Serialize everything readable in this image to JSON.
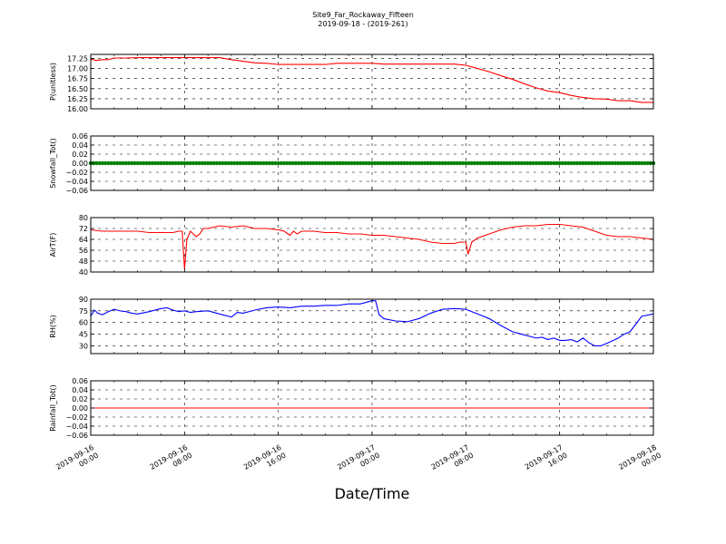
{
  "figure": {
    "title": "Site9_Far_Rockaway_Fifteen",
    "subtitle": "2019-09-18 - (2019-261)",
    "xlabel": "Date/Time"
  },
  "chart_data": [
    {
      "type": "line",
      "ylabel": "P(unitless)",
      "color": "#ff0000",
      "ylim": [
        16.0,
        17.35
      ],
      "yticks": [
        16.0,
        16.25,
        16.5,
        16.75,
        17.0,
        17.25
      ],
      "ytick_labels": [
        "16.00",
        "16.25",
        "16.50",
        "16.75",
        "17.00",
        "17.25"
      ],
      "xlim": [
        0,
        48
      ],
      "xticks": [
        0,
        8,
        16,
        24,
        32,
        40,
        48
      ],
      "xtick_labels": [
        [
          "2019-09-16",
          "00:00"
        ],
        [
          "2019-09-16",
          "08:00"
        ],
        [
          "2019-09-16",
          "16:00"
        ],
        [
          "2019-09-17",
          "00:00"
        ],
        [
          "2019-09-17",
          "08:00"
        ],
        [
          "2019-09-17",
          "16:00"
        ],
        [
          "2019-09-18",
          "00:00"
        ]
      ],
      "grid": true,
      "series": [
        {
          "x": [
            0,
            0.5,
            1,
            1.5,
            2,
            3,
            4,
            5,
            6,
            7,
            8,
            9,
            10,
            11,
            12,
            13,
            14,
            15,
            16,
            17,
            18,
            19,
            20,
            21,
            22,
            23,
            24,
            25,
            26,
            27,
            28,
            29,
            30,
            31,
            32,
            33,
            34,
            35,
            36,
            37,
            38,
            39,
            40,
            41,
            42,
            43,
            44,
            45,
            46,
            47,
            48
          ],
          "y": [
            17.23,
            17.2,
            17.22,
            17.22,
            17.26,
            17.26,
            17.27,
            17.27,
            17.27,
            17.27,
            17.27,
            17.27,
            17.27,
            17.27,
            17.22,
            17.18,
            17.14,
            17.13,
            17.1,
            17.1,
            17.1,
            17.1,
            17.1,
            17.13,
            17.13,
            17.13,
            17.13,
            17.11,
            17.11,
            17.11,
            17.11,
            17.11,
            17.11,
            17.11,
            17.08,
            17.0,
            16.92,
            16.82,
            16.73,
            16.62,
            16.52,
            16.44,
            16.4,
            16.33,
            16.28,
            16.25,
            16.24,
            16.2,
            16.2,
            16.16,
            16.16
          ]
        }
      ]
    },
    {
      "type": "scatter",
      "ylabel": "Snowfall_Tot()",
      "color": "#008000",
      "ylim": [
        -0.06,
        0.06
      ],
      "yticks": [
        -0.06,
        -0.04,
        -0.02,
        0.0,
        0.02,
        0.04,
        0.06
      ],
      "ytick_labels": [
        "−0.06",
        "−0.04",
        "−0.02",
        "0.00",
        "0.02",
        "0.04",
        "0.06"
      ],
      "xlim": [
        0,
        48
      ],
      "grid": true,
      "series": [
        {
          "x_range": [
            0,
            48
          ],
          "x_step": 0.25,
          "y_value": 0.0
        }
      ]
    },
    {
      "type": "line",
      "ylabel": "AirT(F)",
      "color": "#ff0000",
      "ylim": [
        40,
        80
      ],
      "yticks": [
        40,
        48,
        56,
        64,
        72,
        80
      ],
      "ytick_labels": [
        "40",
        "48",
        "56",
        "64",
        "72",
        "80"
      ],
      "xlim": [
        0,
        48
      ],
      "grid": true,
      "series": [
        {
          "x": [
            0,
            1,
            2,
            3,
            4,
            5,
            6,
            7,
            7.5,
            7.8,
            8.0,
            8.2,
            8.5,
            9,
            9.3,
            9.6,
            10,
            11,
            12,
            13,
            14,
            15,
            16,
            16.5,
            17,
            17.3,
            17.6,
            18,
            19,
            20,
            21,
            22,
            23,
            24,
            25,
            26,
            27,
            28,
            29,
            30,
            31,
            31.5,
            32,
            32.2,
            32.5,
            33,
            34,
            35,
            36,
            37,
            38,
            39,
            40,
            41,
            42,
            43,
            44,
            45,
            46,
            47,
            48
          ],
          "y": [
            71,
            70,
            70,
            70,
            70,
            69,
            69,
            69,
            70,
            70,
            42,
            64,
            70,
            66,
            68,
            72,
            72,
            74,
            73,
            74,
            72,
            72,
            71,
            70,
            67,
            70,
            68,
            70,
            70,
            69,
            69,
            68,
            68,
            67,
            67,
            66,
            65,
            64,
            62,
            61,
            61,
            62,
            62,
            53,
            62,
            65,
            68,
            71,
            73,
            74,
            74,
            75,
            75,
            74,
            73,
            70,
            67,
            66,
            66,
            65,
            64
          ]
        }
      ]
    },
    {
      "type": "line",
      "ylabel": "RH(%)",
      "color": "#0000ff",
      "ylim": [
        20,
        90
      ],
      "yticks": [
        30,
        45,
        60,
        75,
        90
      ],
      "ytick_labels": [
        "30",
        "45",
        "60",
        "75",
        "90"
      ],
      "xlim": [
        0,
        48
      ],
      "grid": true,
      "series": [
        {
          "x": [
            0,
            0.3,
            0.6,
            1,
            1.5,
            2,
            2.5,
            3,
            3.5,
            4,
            5,
            6,
            6.5,
            7,
            7.5,
            8,
            8.5,
            9,
            10,
            11,
            12,
            12.5,
            13,
            14,
            15,
            16,
            17,
            18,
            19,
            20,
            21,
            22,
            23,
            23.5,
            24,
            24.3,
            24.6,
            25,
            26,
            27,
            28,
            29,
            30,
            31,
            32,
            33,
            34,
            35,
            36,
            36.5,
            37,
            37.5,
            38,
            38.5,
            39,
            39.5,
            40,
            40.5,
            41,
            41.5,
            42,
            42.5,
            43,
            43.5,
            44,
            45,
            45.5,
            46,
            47,
            48
          ],
          "y": [
            68,
            76,
            72,
            70,
            74,
            77,
            75,
            74,
            72,
            71,
            74,
            78,
            79,
            76,
            74,
            75,
            73,
            74,
            75,
            71,
            67,
            73,
            72,
            76,
            79,
            80,
            79,
            81,
            81,
            82,
            82,
            84,
            84,
            86,
            88,
            88,
            70,
            65,
            62,
            61,
            65,
            72,
            77,
            78,
            77,
            71,
            65,
            56,
            48,
            46,
            44,
            42,
            40,
            41,
            38,
            40,
            37,
            37,
            38,
            35,
            40,
            34,
            30,
            30,
            33,
            40,
            45,
            48,
            68,
            71
          ]
        }
      ]
    },
    {
      "type": "line",
      "ylabel": "Rainfall_Tot()",
      "color": "#ff0000",
      "ylim": [
        -0.06,
        0.06
      ],
      "yticks": [
        -0.06,
        -0.04,
        -0.02,
        0.0,
        0.02,
        0.04,
        0.06
      ],
      "ytick_labels": [
        "−0.06",
        "−0.04",
        "−0.02",
        "0.00",
        "0.02",
        "0.04",
        "0.06"
      ],
      "xlim": [
        0,
        48
      ],
      "grid": true,
      "series": [
        {
          "x": [
            0,
            48
          ],
          "y": [
            0.0,
            0.0
          ]
        }
      ]
    }
  ]
}
